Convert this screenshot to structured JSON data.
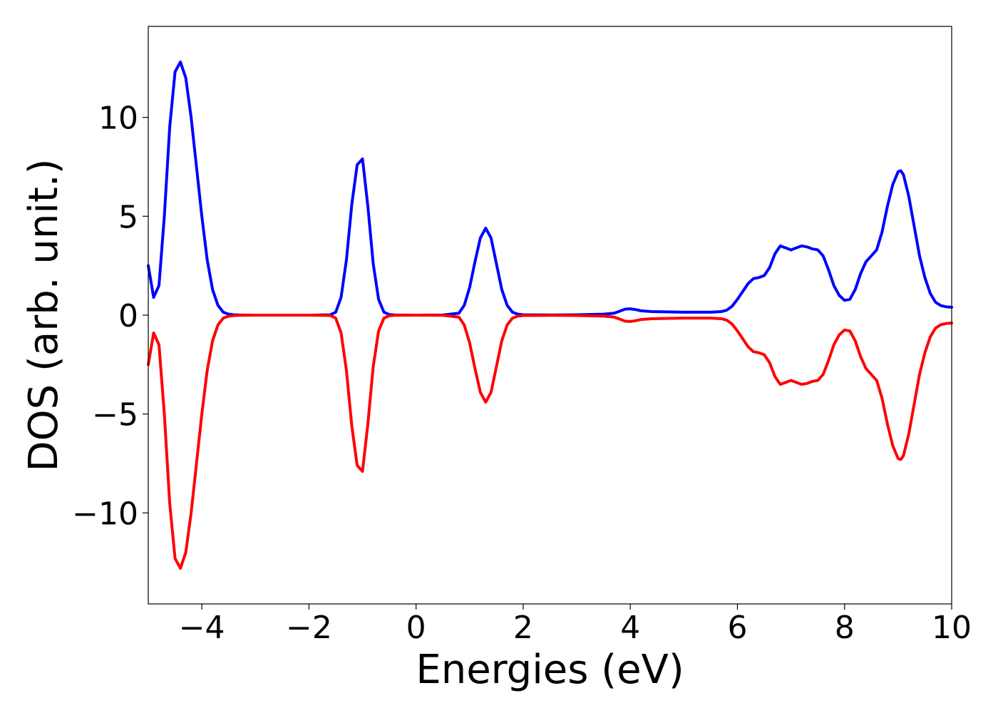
{
  "chart_data": {
    "type": "line",
    "title": "",
    "xlabel": "Energies (eV)",
    "ylabel": "DOS (arb. unit.)",
    "xlim": [
      -5,
      10
    ],
    "ylim": [
      -14.6,
      14.6
    ],
    "xticks": [
      -4,
      -2,
      0,
      2,
      4,
      6,
      8,
      10
    ],
    "xtick_labels": [
      "−4",
      "−2",
      "0",
      "2",
      "4",
      "6",
      "8",
      "10"
    ],
    "yticks": [
      -10,
      -5,
      0,
      5,
      10
    ],
    "ytick_labels": [
      "−10",
      "−5",
      "0",
      "5",
      "10"
    ],
    "grid": false,
    "legend": "none",
    "series": [
      {
        "color": "#0000ff",
        "x": [
          -5.0,
          -4.9,
          -4.8,
          -4.7,
          -4.6,
          -4.5,
          -4.4,
          -4.3,
          -4.2,
          -4.1,
          -4.0,
          -3.9,
          -3.8,
          -3.7,
          -3.6,
          -3.5,
          -3.4,
          -3.3,
          -3.0,
          -2.5,
          -2.0,
          -1.6,
          -1.5,
          -1.4,
          -1.3,
          -1.2,
          -1.1,
          -1.0,
          -0.9,
          -0.8,
          -0.7,
          -0.6,
          -0.5,
          -0.4,
          0.0,
          0.5,
          0.8,
          0.9,
          1.0,
          1.1,
          1.2,
          1.3,
          1.4,
          1.5,
          1.6,
          1.7,
          1.8,
          1.9,
          2.0,
          2.5,
          3.0,
          3.5,
          3.7,
          3.8,
          3.9,
          4.0,
          4.1,
          4.2,
          4.4,
          5.0,
          5.5,
          5.7,
          5.8,
          5.9,
          6.0,
          6.1,
          6.2,
          6.3,
          6.4,
          6.5,
          6.6,
          6.7,
          6.8,
          6.9,
          7.0,
          7.1,
          7.2,
          7.3,
          7.4,
          7.5,
          7.6,
          7.7,
          7.8,
          7.9,
          8.0,
          8.1,
          8.2,
          8.3,
          8.4,
          8.5,
          8.6,
          8.7,
          8.8,
          8.9,
          9.0,
          9.05,
          9.1,
          9.2,
          9.3,
          9.4,
          9.5,
          9.6,
          9.7,
          9.8,
          9.9,
          10.0
        ],
        "y": [
          2.5,
          0.9,
          1.5,
          5.0,
          9.5,
          12.3,
          12.8,
          12.0,
          10.0,
          7.5,
          5.0,
          2.8,
          1.3,
          0.5,
          0.15,
          0.05,
          0.02,
          0.01,
          0.0,
          0.0,
          0.0,
          0.02,
          0.15,
          0.9,
          2.8,
          5.6,
          7.6,
          7.9,
          5.5,
          2.6,
          0.8,
          0.15,
          0.03,
          0.01,
          0.0,
          0.01,
          0.1,
          0.5,
          1.4,
          2.7,
          3.9,
          4.4,
          3.9,
          2.6,
          1.3,
          0.5,
          0.15,
          0.05,
          0.02,
          0.01,
          0.02,
          0.05,
          0.1,
          0.2,
          0.3,
          0.32,
          0.28,
          0.22,
          0.18,
          0.15,
          0.15,
          0.18,
          0.25,
          0.45,
          0.8,
          1.2,
          1.6,
          1.85,
          1.9,
          2.0,
          2.4,
          3.1,
          3.5,
          3.4,
          3.3,
          3.4,
          3.5,
          3.45,
          3.35,
          3.3,
          3.0,
          2.3,
          1.5,
          1.0,
          0.75,
          0.8,
          1.3,
          2.1,
          2.7,
          3.0,
          3.3,
          4.2,
          5.5,
          6.6,
          7.25,
          7.3,
          7.1,
          6.0,
          4.5,
          3.0,
          1.9,
          1.1,
          0.65,
          0.48,
          0.42,
          0.4
        ]
      },
      {
        "color": "#ff0000",
        "x": [
          -5.0,
          -4.9,
          -4.8,
          -4.7,
          -4.6,
          -4.5,
          -4.4,
          -4.3,
          -4.2,
          -4.1,
          -4.0,
          -3.9,
          -3.8,
          -3.7,
          -3.6,
          -3.5,
          -3.4,
          -3.3,
          -3.0,
          -2.5,
          -2.0,
          -1.6,
          -1.5,
          -1.4,
          -1.3,
          -1.2,
          -1.1,
          -1.0,
          -0.9,
          -0.8,
          -0.7,
          -0.6,
          -0.5,
          -0.4,
          0.0,
          0.5,
          0.8,
          0.9,
          1.0,
          1.1,
          1.2,
          1.3,
          1.4,
          1.5,
          1.6,
          1.7,
          1.8,
          1.9,
          2.0,
          2.5,
          3.0,
          3.5,
          3.7,
          3.8,
          3.9,
          4.0,
          4.1,
          4.2,
          4.4,
          5.0,
          5.5,
          5.7,
          5.8,
          5.9,
          6.0,
          6.1,
          6.2,
          6.3,
          6.4,
          6.5,
          6.6,
          6.7,
          6.8,
          6.9,
          7.0,
          7.1,
          7.2,
          7.3,
          7.4,
          7.5,
          7.6,
          7.7,
          7.8,
          7.9,
          8.0,
          8.1,
          8.2,
          8.3,
          8.4,
          8.5,
          8.6,
          8.7,
          8.8,
          8.9,
          9.0,
          9.05,
          9.1,
          9.2,
          9.3,
          9.4,
          9.5,
          9.6,
          9.7,
          9.8,
          9.9,
          10.0
        ],
        "y": [
          -2.5,
          -0.9,
          -1.5,
          -5.0,
          -9.5,
          -12.3,
          -12.8,
          -12.0,
          -10.0,
          -7.5,
          -5.0,
          -2.8,
          -1.3,
          -0.5,
          -0.15,
          -0.05,
          -0.02,
          -0.01,
          0.0,
          0.0,
          0.0,
          -0.02,
          -0.15,
          -0.9,
          -2.8,
          -5.6,
          -7.6,
          -7.9,
          -5.5,
          -2.6,
          -0.8,
          -0.15,
          -0.03,
          -0.01,
          0.0,
          -0.01,
          -0.1,
          -0.5,
          -1.4,
          -2.7,
          -3.9,
          -4.4,
          -3.9,
          -2.6,
          -1.3,
          -0.5,
          -0.15,
          -0.05,
          -0.02,
          -0.01,
          -0.02,
          -0.05,
          -0.1,
          -0.2,
          -0.3,
          -0.32,
          -0.28,
          -0.22,
          -0.18,
          -0.15,
          -0.15,
          -0.18,
          -0.25,
          -0.45,
          -0.8,
          -1.2,
          -1.6,
          -1.85,
          -1.9,
          -2.0,
          -2.4,
          -3.1,
          -3.5,
          -3.4,
          -3.3,
          -3.4,
          -3.5,
          -3.45,
          -3.35,
          -3.3,
          -3.0,
          -2.3,
          -1.5,
          -1.0,
          -0.75,
          -0.8,
          -1.3,
          -2.1,
          -2.7,
          -3.0,
          -3.3,
          -4.2,
          -5.5,
          -6.6,
          -7.25,
          -7.3,
          -7.1,
          -6.0,
          -4.5,
          -3.0,
          -1.9,
          -1.1,
          -0.65,
          -0.48,
          -0.42,
          -0.4
        ]
      }
    ]
  }
}
